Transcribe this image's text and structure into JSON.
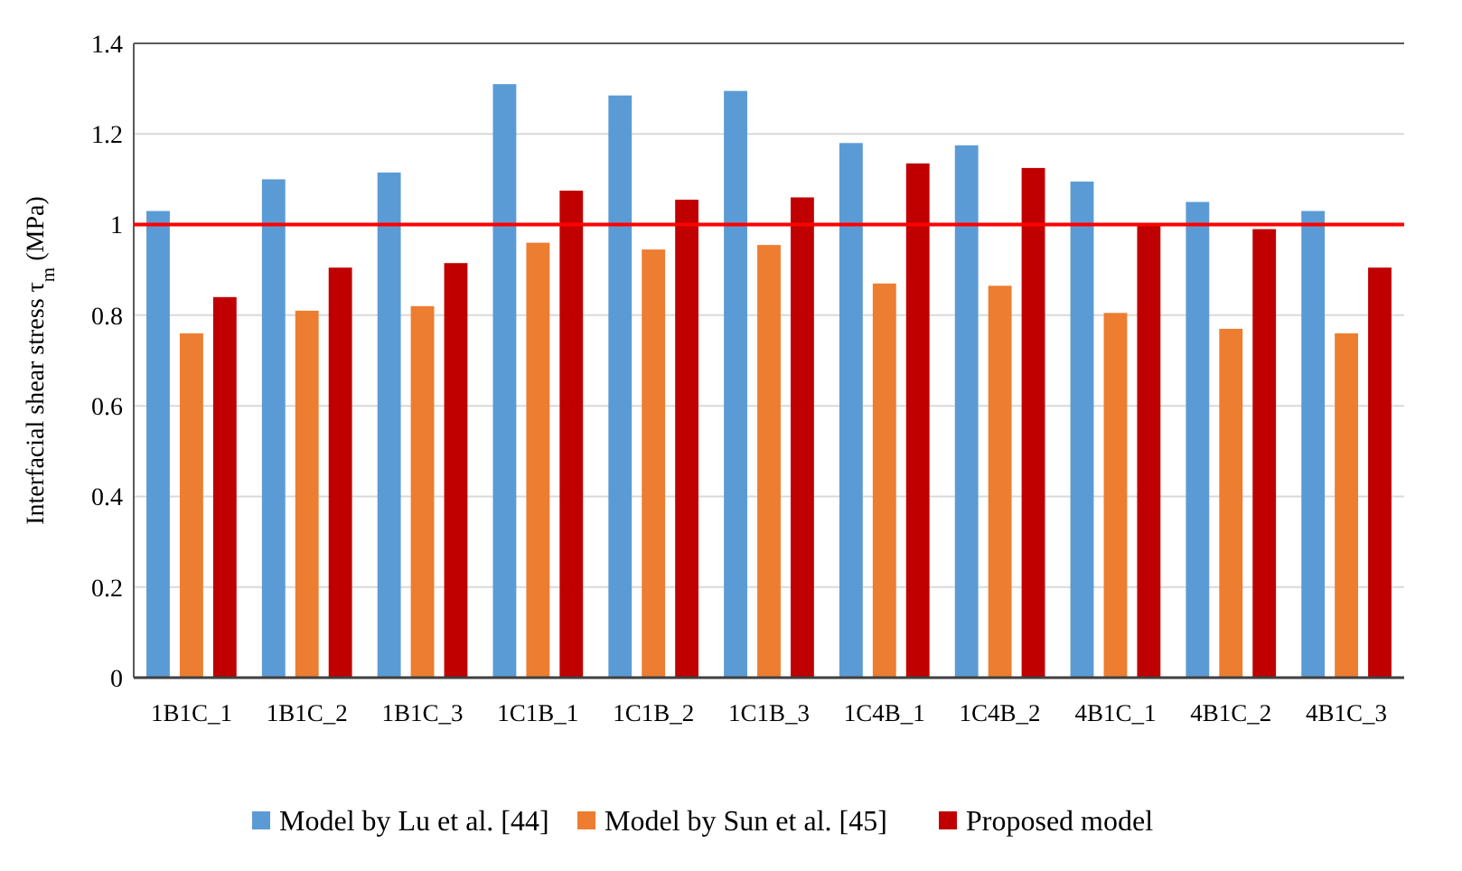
{
  "chart_data": {
    "type": "bar",
    "ylabel": "Interfacial shear stress τ$_{m}$ (MPa)",
    "categories": [
      "1B1C_1",
      "1B1C_2",
      "1B1C_3",
      "1C1B_1",
      "1C1B_2",
      "1C1B_3",
      "1C4B_1",
      "1C4B_2",
      "4B1C_1",
      "4B1C_2",
      "4B1C_3"
    ],
    "series": [
      {
        "name": "Model by Lu et al. [44]",
        "color": "#5b9bd5",
        "values": [
          1.03,
          1.1,
          1.115,
          1.31,
          1.285,
          1.295,
          1.18,
          1.175,
          1.095,
          1.05,
          1.03
        ]
      },
      {
        "name": "Model by Sun et al. [45]",
        "color": "#ed7d31",
        "values": [
          0.76,
          0.81,
          0.82,
          0.96,
          0.945,
          0.955,
          0.87,
          0.865,
          0.805,
          0.77,
          0.76
        ]
      },
      {
        "name": "Proposed model",
        "color": "#c00000",
        "values": [
          0.84,
          0.905,
          0.915,
          1.075,
          1.055,
          1.06,
          1.135,
          1.125,
          1.0,
          0.99,
          0.905
        ]
      }
    ],
    "ylim": [
      0,
      1.4
    ],
    "yticks": [
      0,
      0.2,
      0.4,
      0.6,
      0.8,
      1,
      1.2,
      1.4
    ],
    "grid": "y",
    "legend": "bottom",
    "ref_lines": [
      {
        "axis": "y",
        "value": 1,
        "color": "#ff0000"
      }
    ]
  }
}
